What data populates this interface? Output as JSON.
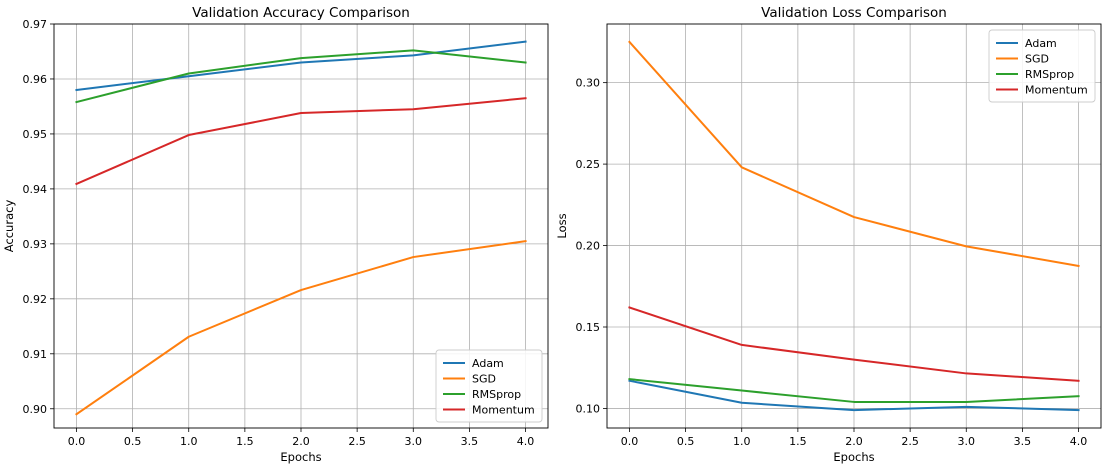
{
  "chart_data": [
    {
      "type": "line",
      "title": "Validation Accuracy Comparison",
      "xlabel": "Epochs",
      "ylabel": "Accuracy",
      "x": [
        0,
        1,
        2,
        3,
        4
      ],
      "xlim": [
        -0.2,
        4.2
      ],
      "ylim": [
        0.8965,
        0.97
      ],
      "xticks": [
        "0.0",
        "0.5",
        "1.0",
        "1.5",
        "2.0",
        "2.5",
        "3.0",
        "3.5",
        "4.0"
      ],
      "yticks": [
        "0.90",
        "0.91",
        "0.92",
        "0.93",
        "0.94",
        "0.95",
        "0.96",
        "0.97"
      ],
      "grid": true,
      "legend_position": "lower-right",
      "series": [
        {
          "name": "Adam",
          "color": "#1f77b4",
          "values": [
            0.958,
            0.9605,
            0.963,
            0.9643,
            0.9668
          ]
        },
        {
          "name": "SGD",
          "color": "#ff7f0e",
          "values": [
            0.899,
            0.9131,
            0.9216,
            0.9276,
            0.9305
          ]
        },
        {
          "name": "RMSprop",
          "color": "#2ca02c",
          "values": [
            0.9558,
            0.961,
            0.9638,
            0.9652,
            0.963
          ]
        },
        {
          "name": "Momentum",
          "color": "#d62728",
          "values": [
            0.9409,
            0.9498,
            0.9538,
            0.9545,
            0.9565
          ]
        }
      ]
    },
    {
      "type": "line",
      "title": "Validation Loss Comparison",
      "xlabel": "Epochs",
      "ylabel": "Loss",
      "x": [
        0,
        1,
        2,
        3,
        4
      ],
      "xlim": [
        -0.2,
        4.2
      ],
      "ylim": [
        0.088,
        0.336
      ],
      "xticks": [
        "0.0",
        "0.5",
        "1.0",
        "1.5",
        "2.0",
        "2.5",
        "3.0",
        "3.5",
        "4.0"
      ],
      "yticks": [
        "0.10",
        "0.15",
        "0.20",
        "0.25",
        "0.30"
      ],
      "grid": true,
      "legend_position": "upper-right",
      "series": [
        {
          "name": "Adam",
          "color": "#1f77b4",
          "values": [
            0.117,
            0.1035,
            0.099,
            0.101,
            0.099
          ]
        },
        {
          "name": "SGD",
          "color": "#ff7f0e",
          "values": [
            0.325,
            0.248,
            0.2175,
            0.1995,
            0.1875
          ]
        },
        {
          "name": "RMSprop",
          "color": "#2ca02c",
          "values": [
            0.118,
            0.111,
            0.104,
            0.104,
            0.1075
          ]
        },
        {
          "name": "Momentum",
          "color": "#d62728",
          "values": [
            0.162,
            0.139,
            0.13,
            0.1215,
            0.117
          ]
        }
      ]
    }
  ]
}
